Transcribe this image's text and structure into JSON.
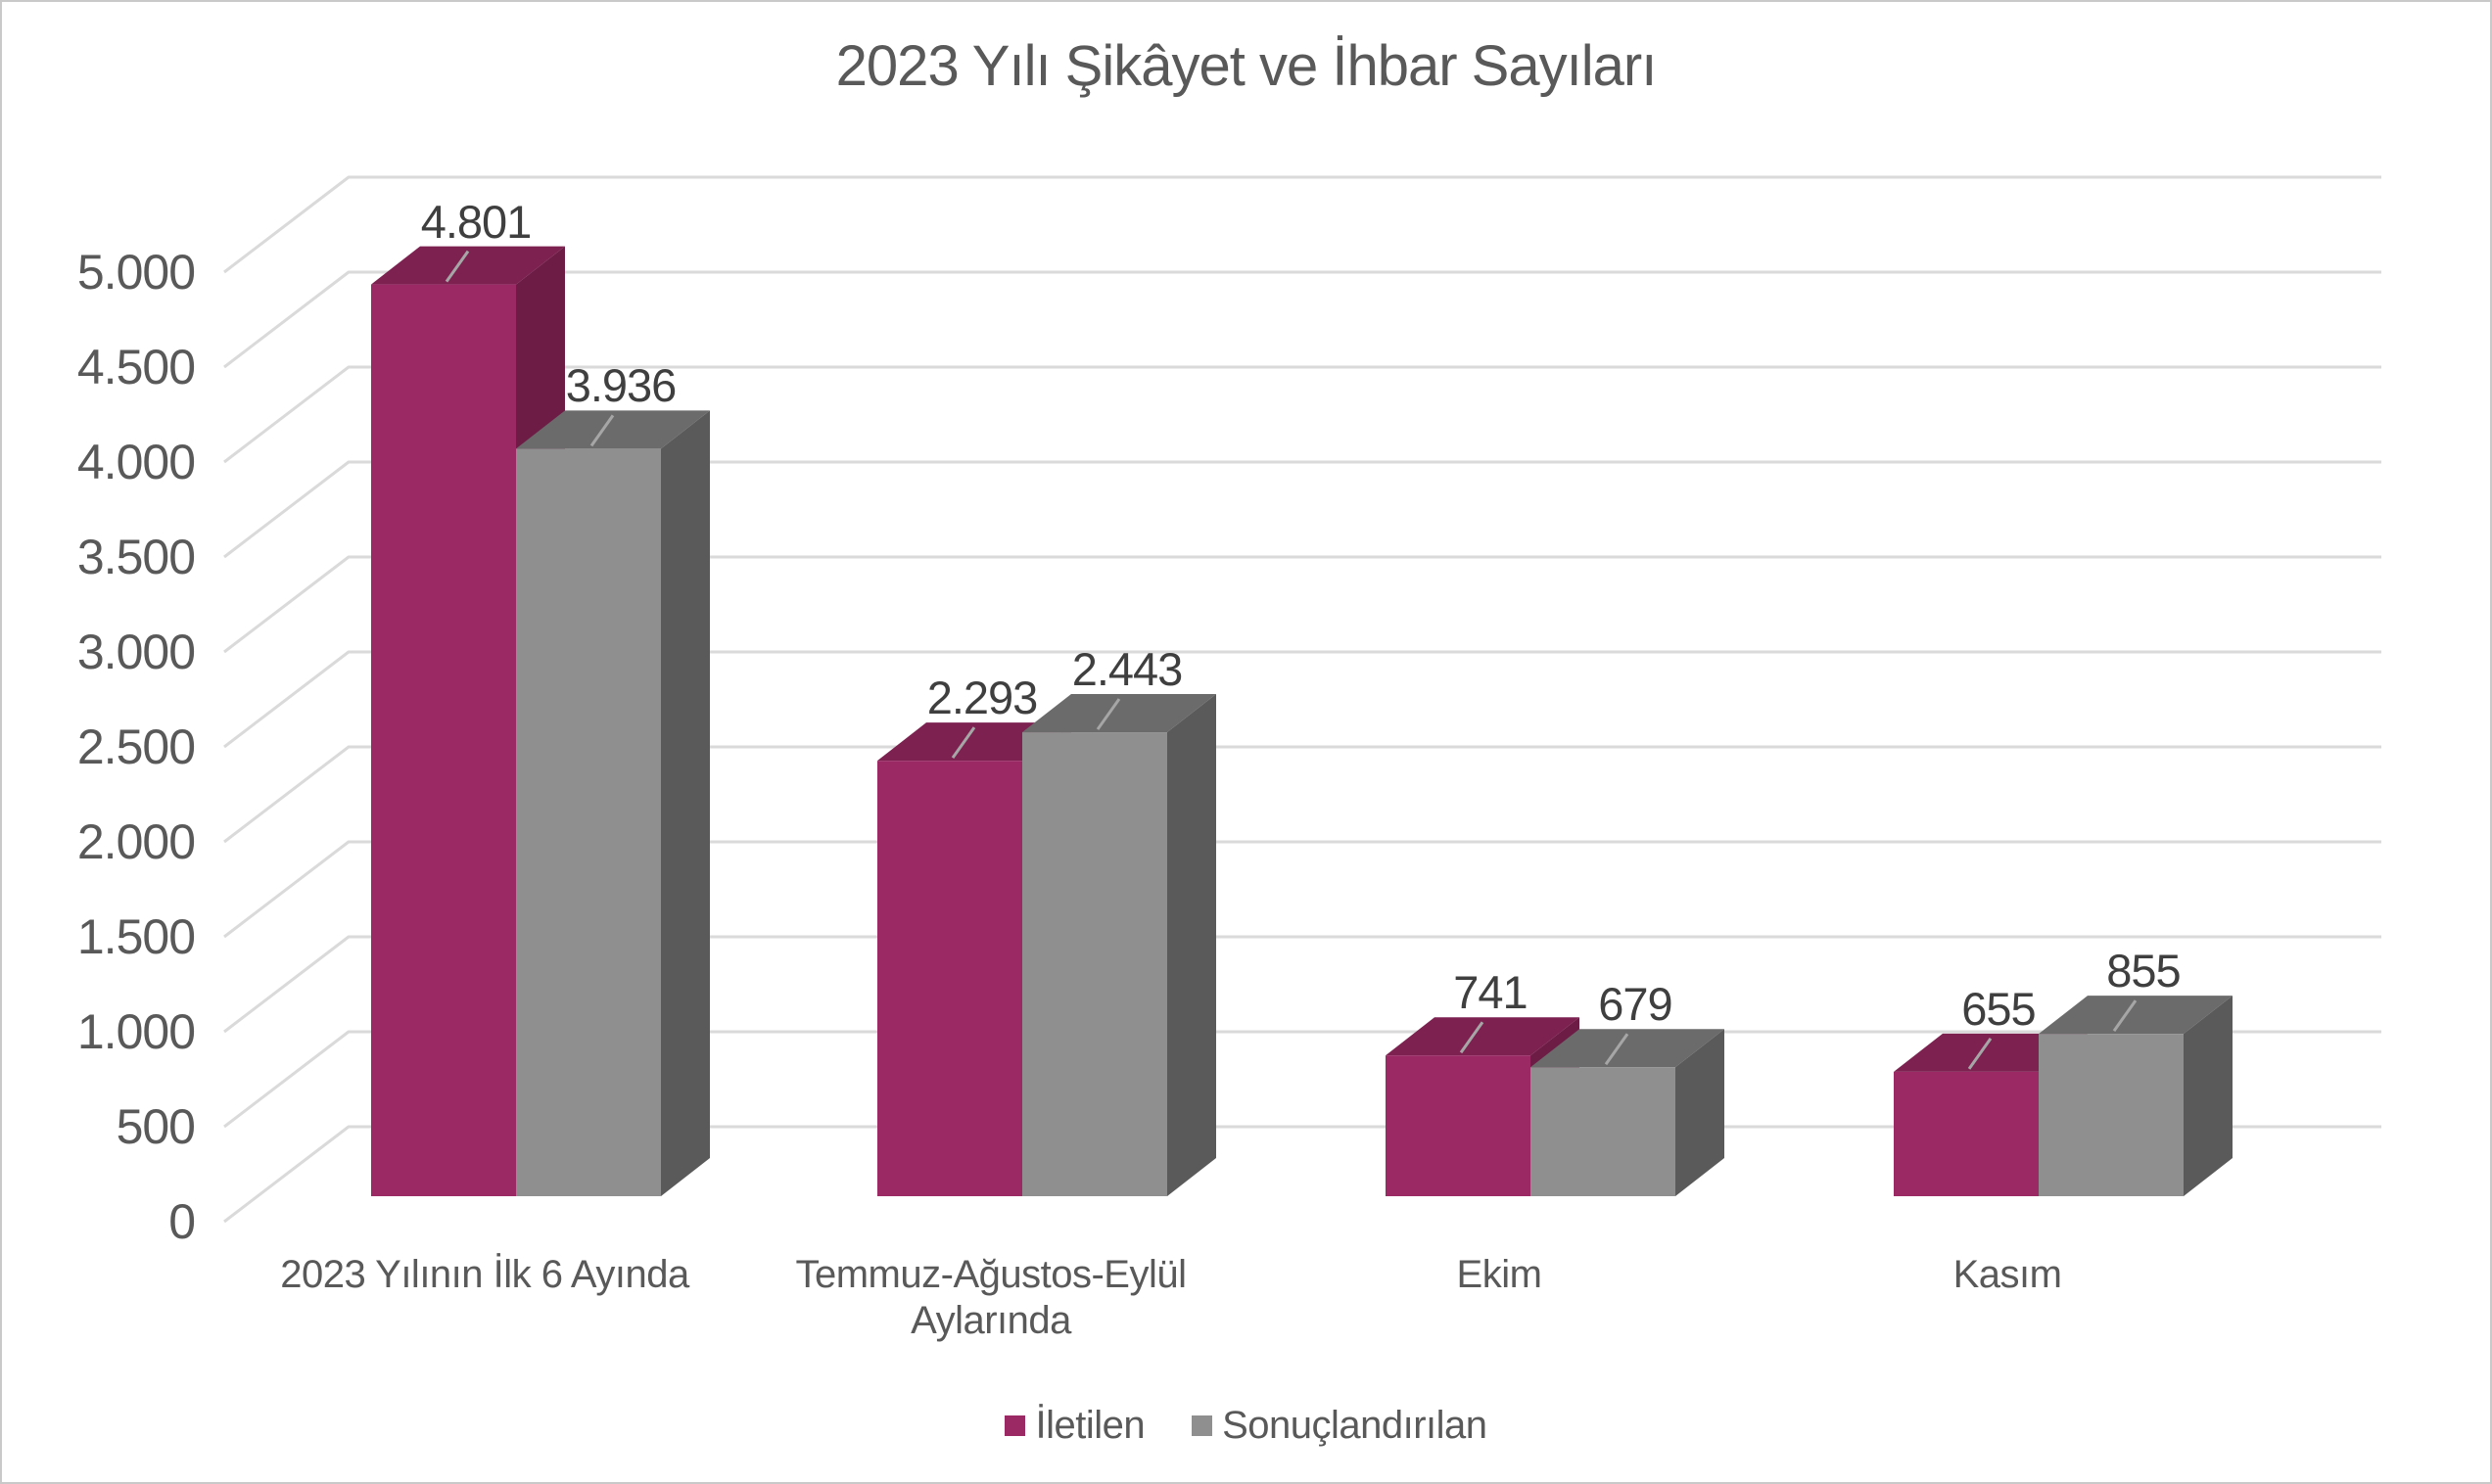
{
  "title": "2023 Yılı Şikâyet ve İhbar Sayıları",
  "chart_data": {
    "type": "bar",
    "style": "3d-clustered-column",
    "title": "2023 Yılı Şikâyet ve İhbar Sayıları",
    "categories": [
      "2023 Yılının İlk 6 Ayında",
      "Temmuz-Ağustos-Eylül Aylarında",
      "Ekim",
      "Kasım"
    ],
    "category_label_lines": [
      [
        "2023 Yılının İlk 6 Ayında"
      ],
      [
        "Temmuz-Ağustos-Eylül",
        "Aylarında"
      ],
      [
        "Ekim"
      ],
      [
        "Kasım"
      ]
    ],
    "series": [
      {
        "name": "İletilen",
        "values": [
          4801,
          2293,
          741,
          655
        ],
        "value_labels": [
          "4.801",
          "2.293",
          "741",
          "655"
        ],
        "color": "#9a2964"
      },
      {
        "name": "Sonuçlandırılan",
        "values": [
          3936,
          2443,
          679,
          855
        ],
        "value_labels": [
          "3.936",
          "2.443",
          "679",
          "855"
        ],
        "color": "#8f8f8f"
      }
    ],
    "ylim": [
      0,
      5000
    ],
    "ytick_step": 500,
    "ytick_labels": [
      "0",
      "500",
      "1.000",
      "1.500",
      "2.000",
      "2.500",
      "3.000",
      "3.500",
      "4.000",
      "4.500",
      "5.000"
    ],
    "grid": true,
    "legend_position": "bottom"
  },
  "colors": {
    "series1_front": "#9a2964",
    "series1_top": "#7c2150",
    "series1_side": "#6d1c46",
    "series2_front": "#8f8f8f",
    "series2_top": "#6b6b6b",
    "series2_side": "#5a5a5a",
    "gridline": "#dadada",
    "leader_line": "#a6a6a6",
    "axis_text": "#595959",
    "value_text": "#3f3f3f",
    "title_text": "#595959",
    "frame_border": "#c9c9c9",
    "background": "#ffffff"
  }
}
